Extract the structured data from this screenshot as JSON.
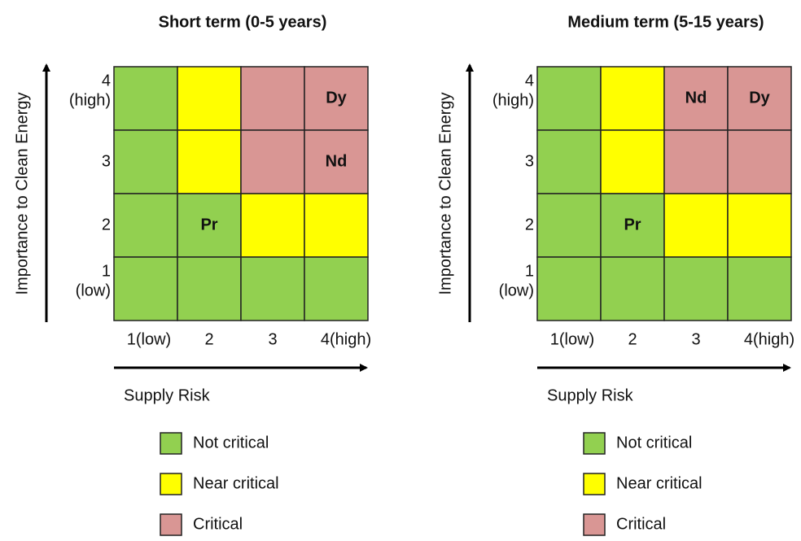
{
  "panels": [
    {
      "title": "Short term (0-5 years)",
      "y_axis_label": "Importance to Clean Energy",
      "x_axis_label": "Supply Risk",
      "y_ticks": [
        [
          "4",
          "(high)"
        ],
        [
          "3"
        ],
        [
          "2"
        ],
        [
          "1",
          "(low)"
        ]
      ],
      "x_ticks": [
        "1(low)",
        "2",
        "3",
        "4(high)"
      ],
      "cells": [
        [
          {
            "level": 0
          },
          {
            "level": 1
          },
          {
            "level": 2
          },
          {
            "level": 2,
            "label": "Dy"
          }
        ],
        [
          {
            "level": 0
          },
          {
            "level": 1
          },
          {
            "level": 2
          },
          {
            "level": 2,
            "label": "Nd"
          }
        ],
        [
          {
            "level": 0
          },
          {
            "level": 0,
            "label": "Pr"
          },
          {
            "level": 1
          },
          {
            "level": 1
          }
        ],
        [
          {
            "level": 0
          },
          {
            "level": 0
          },
          {
            "level": 0
          },
          {
            "level": 0
          }
        ]
      ],
      "legend": [
        {
          "label": "Not critical",
          "color": "#92d050"
        },
        {
          "label": "Near critical",
          "color": "#ffff00"
        },
        {
          "label": "Critical",
          "color": "#d99694"
        }
      ]
    },
    {
      "title": "Medium term (5-15 years)",
      "y_axis_label": "Importance to Clean Energy",
      "x_axis_label": "Supply Risk",
      "y_ticks": [
        [
          "4",
          "(high)"
        ],
        [
          "3"
        ],
        [
          "2"
        ],
        [
          "1",
          "(low)"
        ]
      ],
      "x_ticks": [
        "1(low)",
        "2",
        "3",
        "4(high)"
      ],
      "cells": [
        [
          {
            "level": 0
          },
          {
            "level": 1
          },
          {
            "level": 2,
            "label": "Nd"
          },
          {
            "level": 2,
            "label": "Dy"
          }
        ],
        [
          {
            "level": 0
          },
          {
            "level": 1
          },
          {
            "level": 2
          },
          {
            "level": 2
          }
        ],
        [
          {
            "level": 0
          },
          {
            "level": 0,
            "label": "Pr"
          },
          {
            "level": 1
          },
          {
            "level": 1
          }
        ],
        [
          {
            "level": 0
          },
          {
            "level": 0
          },
          {
            "level": 0
          },
          {
            "level": 0
          }
        ]
      ],
      "legend": [
        {
          "label": "Not critical",
          "color": "#92d050"
        },
        {
          "label": "Near critical",
          "color": "#ffff00"
        },
        {
          "label": "Critical",
          "color": "#d99694"
        }
      ]
    }
  ]
}
